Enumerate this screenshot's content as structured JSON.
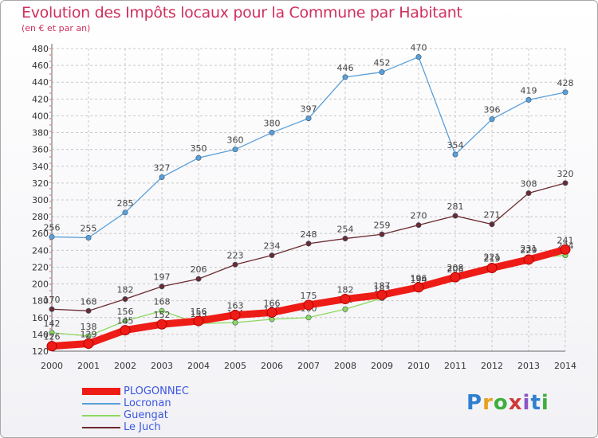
{
  "title": "Evolution des Impôts locaux pour la Commune par Habitant",
  "subtitle": "(en € et par an)",
  "brand": "Proxiti",
  "colors": {
    "title": "#d0305e",
    "legend_text": "#3b56e0",
    "grid": "#c8c8c8",
    "axis_text": "#333333"
  },
  "chart_data": {
    "type": "line",
    "title": "Evolution des Impôts locaux pour la Commune par Habitant",
    "subtitle": "(en € et par an)",
    "xlabel": "",
    "ylabel": "",
    "x": [
      2000,
      2001,
      2002,
      2003,
      2004,
      2005,
      2006,
      2007,
      2008,
      2009,
      2010,
      2011,
      2012,
      2013,
      2014
    ],
    "ylim": [
      120,
      480
    ],
    "yticks": [
      120,
      140,
      160,
      180,
      200,
      220,
      240,
      260,
      280,
      300,
      320,
      340,
      360,
      380,
      400,
      420,
      440,
      460,
      480
    ],
    "grid": true,
    "legend_position": "bottom-left",
    "series": [
      {
        "name": "Locronan",
        "color": "#5a9fd8",
        "values": [
          256,
          255,
          285,
          327,
          350,
          360,
          380,
          397,
          446,
          452,
          470,
          354,
          396,
          419,
          428
        ]
      },
      {
        "name": "Le Juch",
        "color": "#6b2a30",
        "values": [
          170,
          168,
          182,
          197,
          206,
          223,
          234,
          248,
          254,
          259,
          270,
          281,
          271,
          308,
          320
        ]
      },
      {
        "name": "Guengat",
        "color": "#8ed85e",
        "values": [
          142,
          138,
          156,
          168,
          153,
          154,
          158,
          160,
          170,
          183,
          194,
          206,
          221,
          231,
          234
        ]
      },
      {
        "name": "PLOGONNEC",
        "color": "#ee1c16",
        "values": [
          126,
          129,
          145,
          152,
          156,
          163,
          166,
          175,
          182,
          187,
          196,
          208,
          219,
          229,
          241
        ]
      }
    ],
    "legend": [
      "PLOGONNEC",
      "Locronan",
      "Guengat",
      "Le Juch"
    ]
  }
}
